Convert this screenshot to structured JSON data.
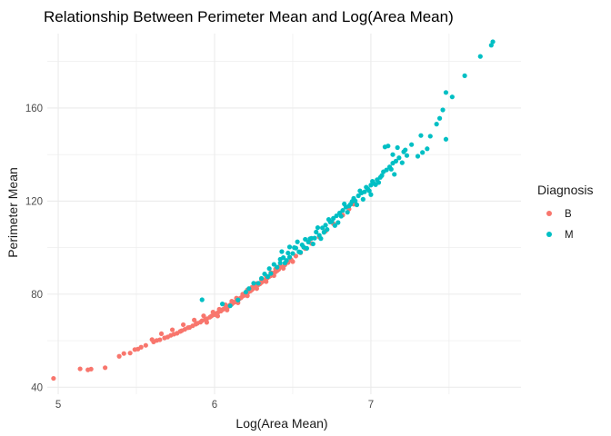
{
  "chart_data": {
    "type": "scatter",
    "title": "Relationship Between Perimeter Mean and Log(Area Mean)",
    "xlabel": "Log(Area Mean)",
    "ylabel": "Perimeter Mean",
    "xlim": [
      4.93,
      7.96
    ],
    "ylim": [
      37,
      192
    ],
    "x_ticks": [
      5,
      6,
      7
    ],
    "y_ticks": [
      40,
      80,
      120,
      160
    ],
    "grid": true,
    "legend": {
      "title": "Diagnosis",
      "position": "right",
      "entries": [
        {
          "label": "B",
          "color": "#F8766D"
        },
        {
          "label": "M",
          "color": "#00BFC4"
        }
      ]
    },
    "series": [
      {
        "name": "B",
        "color": "#F8766D",
        "points": [
          [
            4.97,
            43.8
          ],
          [
            5.14,
            47.9
          ],
          [
            5.19,
            47.5
          ],
          [
            5.21,
            47.8
          ],
          [
            5.3,
            48.4
          ],
          [
            5.39,
            53.3
          ],
          [
            5.42,
            54.5
          ],
          [
            5.46,
            54.7
          ],
          [
            5.49,
            56.2
          ],
          [
            5.51,
            56.4
          ],
          [
            5.53,
            57.2
          ],
          [
            5.56,
            58.0
          ],
          [
            5.61,
            59.5
          ],
          [
            5.63,
            60.1
          ],
          [
            5.65,
            60.4
          ],
          [
            5.68,
            61.2
          ],
          [
            5.7,
            61.6
          ],
          [
            5.72,
            62.3
          ],
          [
            5.74,
            62.8
          ],
          [
            5.76,
            63.2
          ],
          [
            5.78,
            64.0
          ],
          [
            5.79,
            64.3
          ],
          [
            5.81,
            64.9
          ],
          [
            5.83,
            65.6
          ],
          [
            5.84,
            65.7
          ],
          [
            5.86,
            66.4
          ],
          [
            5.88,
            67.1
          ],
          [
            5.89,
            67.5
          ],
          [
            5.91,
            68.0
          ],
          [
            5.92,
            68.6
          ],
          [
            5.94,
            69.1
          ],
          [
            5.95,
            69.4
          ],
          [
            5.97,
            70.1
          ],
          [
            5.98,
            70.6
          ],
          [
            6.0,
            71.2
          ],
          [
            6.01,
            71.6
          ],
          [
            6.02,
            72.0
          ],
          [
            6.04,
            72.7
          ],
          [
            6.05,
            73.3
          ],
          [
            6.06,
            73.7
          ],
          [
            6.08,
            74.3
          ],
          [
            6.09,
            74.8
          ],
          [
            6.1,
            75.4
          ],
          [
            6.11,
            75.7
          ],
          [
            6.12,
            76.3
          ],
          [
            6.13,
            76.6
          ],
          [
            6.14,
            77.2
          ],
          [
            6.15,
            77.6
          ],
          [
            6.16,
            78.1
          ],
          [
            6.17,
            78.5
          ],
          [
            6.18,
            79.2
          ],
          [
            6.19,
            79.5
          ],
          [
            6.2,
            80.1
          ],
          [
            6.21,
            80.5
          ],
          [
            6.22,
            81.1
          ],
          [
            6.23,
            81.4
          ],
          [
            6.24,
            82.0
          ],
          [
            6.25,
            82.6
          ],
          [
            6.26,
            83.0
          ],
          [
            6.27,
            83.5
          ],
          [
            6.28,
            84.1
          ],
          [
            6.29,
            84.4
          ],
          [
            6.3,
            85.0
          ],
          [
            6.31,
            85.6
          ],
          [
            6.32,
            86.0
          ],
          [
            6.33,
            86.5
          ],
          [
            6.34,
            87.1
          ],
          [
            6.35,
            87.6
          ],
          [
            6.36,
            88.0
          ],
          [
            6.37,
            88.6
          ],
          [
            6.38,
            89.2
          ],
          [
            6.39,
            89.6
          ],
          [
            6.4,
            90.1
          ],
          [
            6.41,
            90.6
          ],
          [
            6.43,
            91.7
          ],
          [
            6.45,
            92.6
          ],
          [
            6.47,
            93.6
          ],
          [
            6.49,
            94.8
          ],
          [
            6.52,
            96.4
          ],
          [
            6.55,
            97.8
          ],
          [
            6.58,
            99.6
          ],
          [
            6.62,
            101.8
          ],
          [
            6.67,
            104.6
          ],
          [
            6.71,
            107.1
          ],
          [
            6.76,
            110.3
          ],
          [
            6.82,
            114.0
          ],
          [
            6.86,
            116.6
          ],
          [
            6.89,
            118.7
          ],
          [
            5.6,
            60.5
          ],
          [
            5.66,
            63.0
          ],
          [
            5.73,
            64.7
          ],
          [
            5.8,
            66.9
          ],
          [
            5.87,
            68.9
          ],
          [
            5.93,
            70.7
          ],
          [
            5.99,
            72.3
          ],
          [
            6.03,
            73.5
          ],
          [
            6.07,
            75.4
          ],
          [
            6.11,
            77.0
          ],
          [
            6.14,
            78.3
          ],
          [
            6.18,
            80.0
          ],
          [
            6.21,
            81.8
          ],
          [
            6.24,
            83.0
          ],
          [
            6.27,
            84.6
          ],
          [
            6.3,
            86.3
          ],
          [
            6.33,
            87.8
          ],
          [
            6.36,
            89.3
          ],
          [
            6.39,
            90.8
          ],
          [
            6.42,
            92.2
          ],
          [
            5.95,
            67.9
          ],
          [
            6.02,
            70.6
          ],
          [
            6.08,
            73.2
          ],
          [
            6.15,
            76.3
          ],
          [
            6.21,
            79.3
          ],
          [
            6.27,
            82.4
          ],
          [
            6.33,
            85.4
          ],
          [
            6.38,
            88.0
          ],
          [
            6.44,
            91.1
          ],
          [
            6.5,
            94.0
          ]
        ]
      },
      {
        "name": "M",
        "color": "#00BFC4",
        "points": [
          [
            5.92,
            77.6
          ],
          [
            6.05,
            75.8
          ],
          [
            6.1,
            75.0
          ],
          [
            6.15,
            77.5
          ],
          [
            6.2,
            80.9
          ],
          [
            6.22,
            82.4
          ],
          [
            6.25,
            84.7
          ],
          [
            6.28,
            84.7
          ],
          [
            6.3,
            86.8
          ],
          [
            6.32,
            88.7
          ],
          [
            6.34,
            87.5
          ],
          [
            6.35,
            91.0
          ],
          [
            6.36,
            88.9
          ],
          [
            6.38,
            92.8
          ],
          [
            6.4,
            91.6
          ],
          [
            6.42,
            93.4
          ],
          [
            6.44,
            95.7
          ],
          [
            6.45,
            93.4
          ],
          [
            6.47,
            97.7
          ],
          [
            6.48,
            95.9
          ],
          [
            6.5,
            97.5
          ],
          [
            6.52,
            99.8
          ],
          [
            6.54,
            98.2
          ],
          [
            6.56,
            101.2
          ],
          [
            6.57,
            100.2
          ],
          [
            6.58,
            103.6
          ],
          [
            6.6,
            102.4
          ],
          [
            6.62,
            104.0
          ],
          [
            6.64,
            104.1
          ],
          [
            6.65,
            106.7
          ],
          [
            6.67,
            105.3
          ],
          [
            6.69,
            108.5
          ],
          [
            6.71,
            109.7
          ],
          [
            6.72,
            107.8
          ],
          [
            6.74,
            111.0
          ],
          [
            6.76,
            112.6
          ],
          [
            6.78,
            113.7
          ],
          [
            6.8,
            114.9
          ],
          [
            6.82,
            116.0
          ],
          [
            6.84,
            117.4
          ],
          [
            6.86,
            117.9
          ],
          [
            6.88,
            119.9
          ],
          [
            6.9,
            120.1
          ],
          [
            6.92,
            122.3
          ],
          [
            6.94,
            123.5
          ],
          [
            6.96,
            124.0
          ],
          [
            6.98,
            125.3
          ],
          [
            7.0,
            126.9
          ],
          [
            7.02,
            127.6
          ],
          [
            7.04,
            129.2
          ],
          [
            7.06,
            130.2
          ],
          [
            7.08,
            132.6
          ],
          [
            7.1,
            133.4
          ],
          [
            7.12,
            134.7
          ],
          [
            7.14,
            136.3
          ],
          [
            7.16,
            137.2
          ],
          [
            7.18,
            138.6
          ],
          [
            7.22,
            142.0
          ],
          [
            7.26,
            144.3
          ],
          [
            7.32,
            148.2
          ],
          [
            7.42,
            153.1
          ],
          [
            7.44,
            155.6
          ],
          [
            7.46,
            159.2
          ],
          [
            7.48,
            166.7
          ],
          [
            7.52,
            164.8
          ],
          [
            7.6,
            173.9
          ],
          [
            7.7,
            182.2
          ],
          [
            7.77,
            187.0
          ],
          [
            7.78,
            188.5
          ],
          [
            6.55,
            98.0
          ],
          [
            6.63,
            101.6
          ],
          [
            6.68,
            103.9
          ],
          [
            6.75,
            111.2
          ],
          [
            6.79,
            110.8
          ],
          [
            6.85,
            115.2
          ],
          [
            6.87,
            118.7
          ],
          [
            6.91,
            118.4
          ],
          [
            6.95,
            120.8
          ],
          [
            7.0,
            122.8
          ],
          [
            7.05,
            128.0
          ],
          [
            7.07,
            131.0
          ],
          [
            7.13,
            133.7
          ],
          [
            7.15,
            131.5
          ],
          [
            7.2,
            136.5
          ],
          [
            7.09,
            143.3
          ],
          [
            7.11,
            143.7
          ],
          [
            7.17,
            143.0
          ],
          [
            7.14,
            140.0
          ],
          [
            7.21,
            141.2
          ],
          [
            7.23,
            139.6
          ],
          [
            7.3,
            139.3
          ],
          [
            7.33,
            140.9
          ],
          [
            7.36,
            142.5
          ],
          [
            7.38,
            147.9
          ],
          [
            7.48,
            146.6
          ],
          [
            6.43,
            98.3
          ],
          [
            6.48,
            100.3
          ],
          [
            6.53,
            102.5
          ],
          [
            6.61,
            103.8
          ],
          [
            6.66,
            108.6
          ],
          [
            6.73,
            112.1
          ],
          [
            6.83,
            118.8
          ],
          [
            6.93,
            124.4
          ],
          [
            6.97,
            126.0
          ],
          [
            7.01,
            128.5
          ],
          [
            6.42,
            95.0
          ],
          [
            6.46,
            94.5
          ],
          [
            6.51,
            100.0
          ],
          [
            6.59,
            99.7
          ],
          [
            6.7,
            106.6
          ],
          [
            6.77,
            109.5
          ],
          [
            6.81,
            113.5
          ],
          [
            6.89,
            121.2
          ],
          [
            6.99,
            124.4
          ],
          [
            7.03,
            127.1
          ]
        ]
      }
    ]
  }
}
